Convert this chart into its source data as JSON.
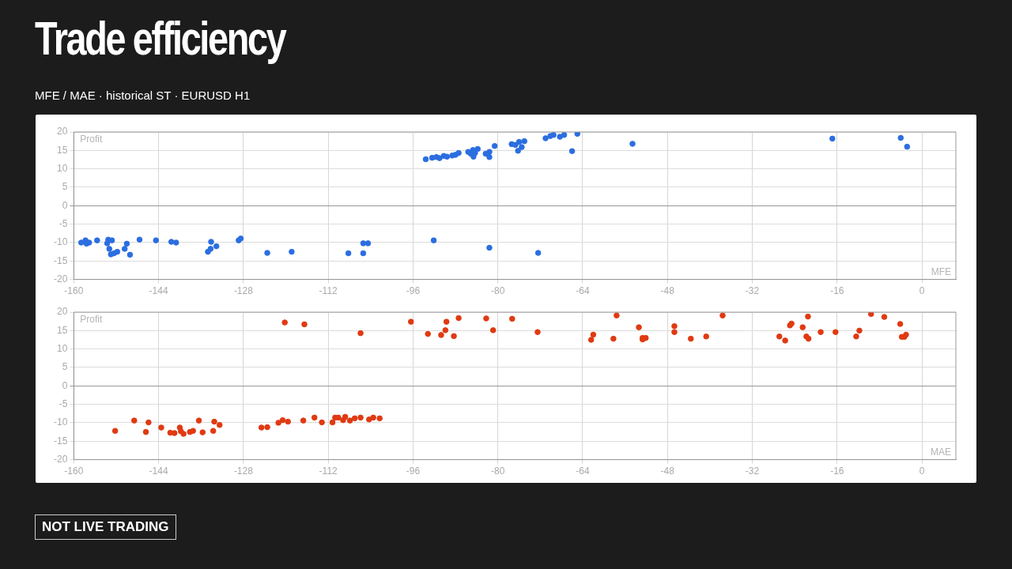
{
  "chart_data": [
    {
      "type": "scatter",
      "title": "Trade efficiency",
      "subtitle": "MFE / MAE · historical ST · EURUSD H1",
      "annotations": [
        "NOT LIVE TRADING"
      ],
      "ylabel": "Profit",
      "xlabel": "MFE",
      "color": "#2b6ee0",
      "marker": "circle",
      "grid": true,
      "xlim": [
        -160,
        6.4
      ],
      "xticks": [
        -160,
        -144,
        -128,
        -112,
        -96,
        -80,
        -64,
        -48,
        -32,
        -16,
        0
      ],
      "ylim": [
        -20,
        20
      ],
      "yticks": [
        -20,
        -15,
        -10,
        -5,
        0,
        5,
        10,
        15,
        20
      ],
      "x": [
        -158.6,
        -157.8,
        -157.6,
        -157.1,
        -155.6,
        -153.7,
        -153.5,
        -152.8,
        -153.3,
        -153,
        -152.4,
        -151.8,
        -150.4,
        -150,
        -149.4,
        -147.6,
        -144.5,
        -141.6,
        -140.7,
        -134.7,
        -134.2,
        -134.1,
        -133.1,
        -128.9,
        -128.5,
        -123.5,
        -118.9,
        -108.2,
        -105.4,
        -105.4,
        -104.5,
        -92.1,
        -81.6,
        -72.4,
        -93.6,
        -92.4,
        -91.6,
        -91,
        -90.2,
        -89.6,
        -88.6,
        -88,
        -87.4,
        -85.6,
        -85.1,
        -84.7,
        -84.6,
        -84.3,
        -83.8,
        -82.3,
        -81.6,
        -81.6,
        -80.6,
        -77.4,
        -76.7,
        -76,
        -75,
        -75.5,
        -76.2,
        -71,
        -70.1,
        -69.5,
        -68.3,
        -67.5,
        -66,
        -65,
        -54.6,
        -16.9,
        -4,
        -2.8
      ],
      "values": [
        -10,
        -9.4,
        -10.3,
        -10,
        -9.4,
        -10.2,
        -9.2,
        -9.4,
        -11.7,
        -13.2,
        -12.9,
        -12.5,
        -11.7,
        -10.3,
        -13.3,
        -9.2,
        -9.4,
        -9.8,
        -10,
        -12.5,
        -11.7,
        -9.8,
        -11,
        -9.4,
        -8.9,
        -12.8,
        -12.5,
        -12.9,
        -12.9,
        -10.2,
        -10.2,
        -9.4,
        -11.4,
        -12.8,
        12.6,
        13,
        13.2,
        12.9,
        13.5,
        13.3,
        13.6,
        13.8,
        14.3,
        14.6,
        14.1,
        15.1,
        13.3,
        14.3,
        15.4,
        14.1,
        14.6,
        13.2,
        16.2,
        16.7,
        16.5,
        17.3,
        17.5,
        15.9,
        14.9,
        18.3,
        18.9,
        19.2,
        18.7,
        19.2,
        14.8,
        19.5,
        16.8,
        18.2,
        18.4,
        16
      ]
    },
    {
      "type": "scatter",
      "ylabel": "Profit",
      "xlabel": "MAE",
      "color": "#e03a12",
      "marker": "circle",
      "grid": true,
      "xlim": [
        -160,
        6.4
      ],
      "xticks": [
        -160,
        -144,
        -128,
        -112,
        -96,
        -80,
        -64,
        -48,
        -32,
        -16,
        0
      ],
      "ylim": [
        -20,
        20
      ],
      "yticks": [
        -20,
        -15,
        -10,
        -5,
        0,
        5,
        10,
        15,
        20
      ],
      "x": [
        -152.2,
        -148.6,
        -146.4,
        -145.9,
        -143.5,
        -141.8,
        -141,
        -140,
        -139.8,
        -139.3,
        -138.1,
        -137.5,
        -136.4,
        -135.7,
        -133.7,
        -133.5,
        -132.5,
        -124.6,
        -123.5,
        -121.4,
        -120.6,
        -119.6,
        -120.2,
        -116.5,
        -116.7,
        -114.6,
        -113.2,
        -111.2,
        -110.7,
        -110.1,
        -109.2,
        -108.8,
        -107.9,
        -107,
        -105.9,
        -105.9,
        -104.3,
        -103.5,
        -102.3,
        -96.4,
        -93.2,
        -90.7,
        -89.9,
        -89.7,
        -88.3,
        -87.4,
        -82.2,
        -80.9,
        -77.3,
        -72.5,
        -62.4,
        -62,
        -58.2,
        -57.6,
        -53.4,
        -52.7,
        -52.7,
        -52.1,
        -46.7,
        -46.7,
        -43.6,
        -40.7,
        -37.6,
        -26.9,
        -25.8,
        -24.9,
        -24.6,
        -22.5,
        -21.8,
        -21.5,
        -21.4,
        -19.1,
        -16.3,
        -12.4,
        -11.8,
        -9.6,
        -7.1,
        -4.1,
        -3.8,
        -3.3,
        -3
      ],
      "values": [
        -12.2,
        -9.4,
        -12.5,
        -9.9,
        -11.3,
        -12.7,
        -12.8,
        -11.3,
        -12.3,
        -13,
        -12.5,
        -12.2,
        -9.4,
        -12.6,
        -12.2,
        -9.7,
        -10.6,
        -11.3,
        -11.2,
        -10,
        -9.3,
        -9.7,
        17.2,
        16.7,
        -9.4,
        -8.6,
        -9.9,
        -9.9,
        -8.6,
        -8.6,
        -9.3,
        -8.4,
        -9.4,
        -8.8,
        14.3,
        -8.6,
        -9.1,
        -8.6,
        -8.8,
        17.4,
        14.1,
        13.8,
        15.1,
        17.4,
        13.5,
        18.4,
        18.3,
        15.1,
        18.2,
        14.6,
        12.5,
        13.9,
        12.8,
        19.1,
        15.9,
        13,
        12.6,
        13,
        16.2,
        14.6,
        12.8,
        13.4,
        19.1,
        13.4,
        12.3,
        16.4,
        16.9,
        15.9,
        13.4,
        18.8,
        12.8,
        14.6,
        14.6,
        13.4,
        15,
        19.5,
        18.7,
        16.8,
        13.3,
        13.3,
        13.9
      ]
    }
  ]
}
